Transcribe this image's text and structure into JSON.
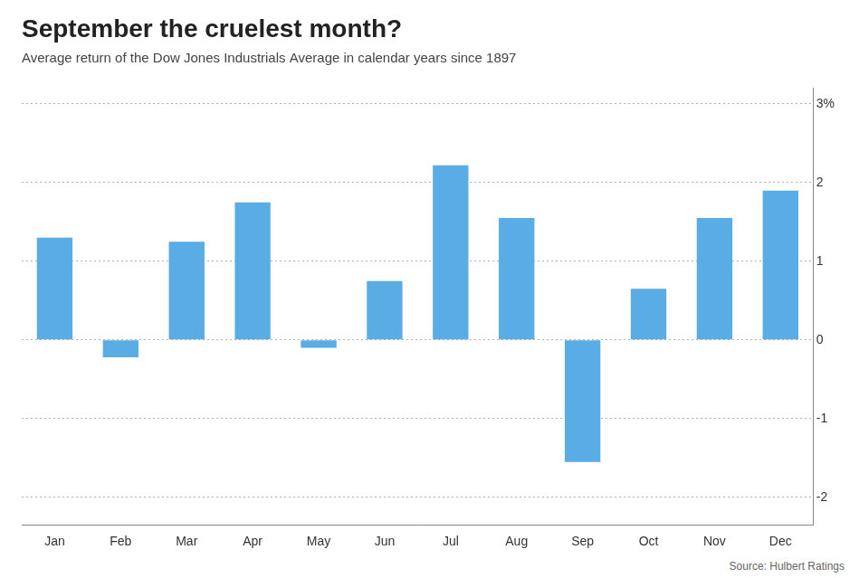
{
  "chart_data": {
    "type": "bar",
    "title": "September the cruelest month?",
    "subtitle": "Average return of the Dow Jones Industrials Average in calendar years since 1897",
    "source": "Source: Hulbert Ratings",
    "categories": [
      "Jan",
      "Feb",
      "Mar",
      "Apr",
      "May",
      "Jun",
      "Jul",
      "Aug",
      "Sep",
      "Oct",
      "Nov",
      "Dec"
    ],
    "values": [
      1.3,
      -0.22,
      1.25,
      1.75,
      -0.1,
      0.75,
      2.22,
      1.55,
      -1.55,
      0.65,
      1.55,
      1.9
    ],
    "color": "#5aace4",
    "ylim": [
      -2.35,
      3.2
    ],
    "yticks": [
      -2,
      -1,
      0,
      1,
      2,
      {
        "value": 3,
        "label": "3%"
      }
    ],
    "grid": true
  }
}
